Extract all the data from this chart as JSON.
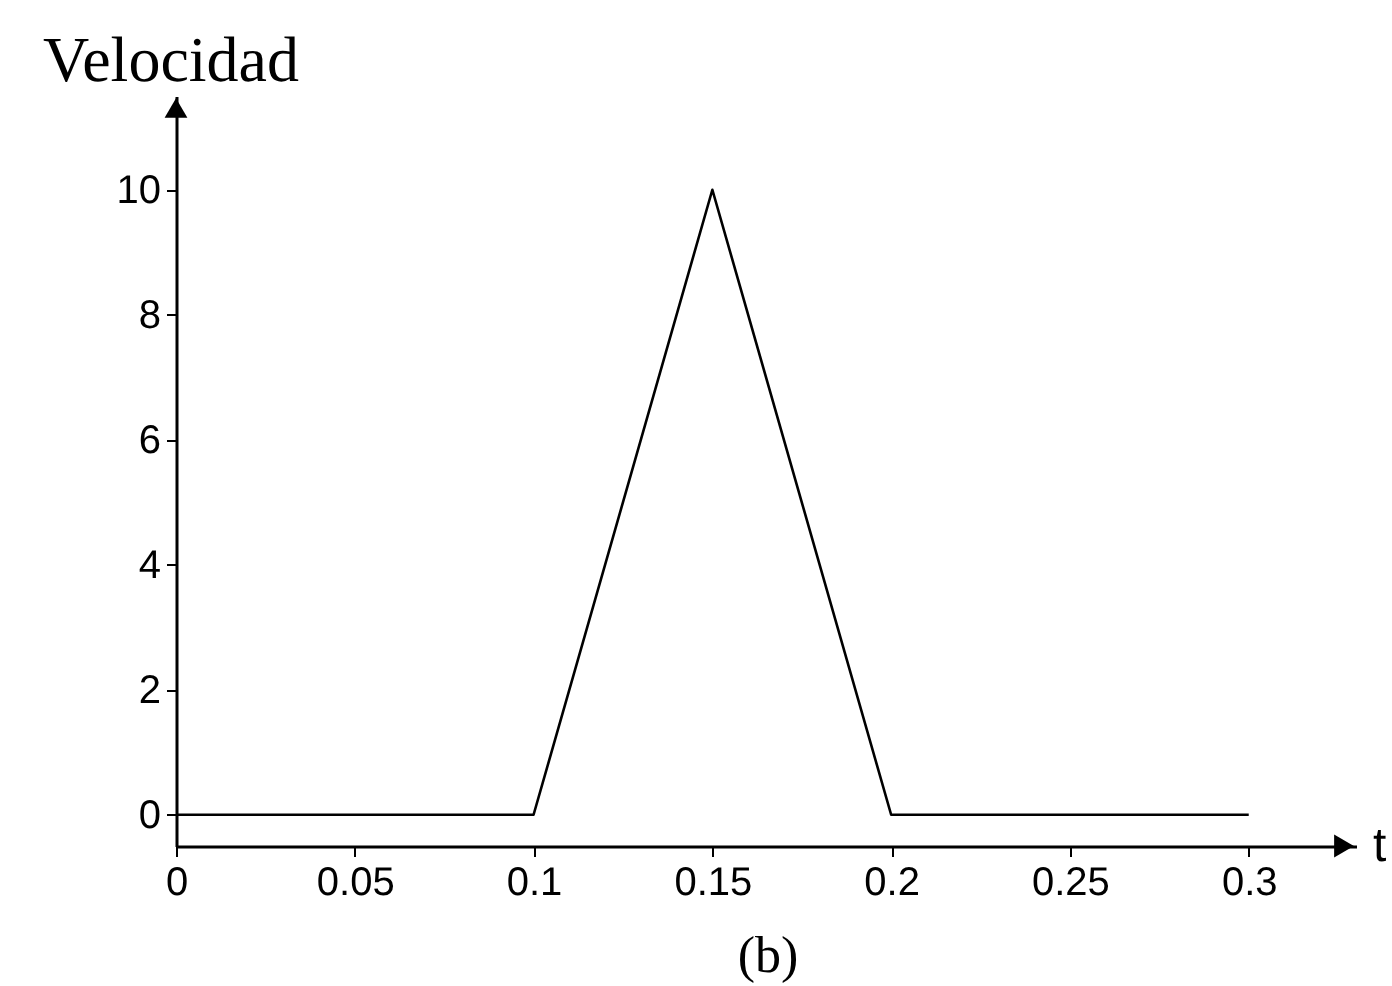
{
  "chart_data": {
    "type": "line",
    "xlabel": "t",
    "ylabel": "Velocidad",
    "annotations": [
      "(b)"
    ],
    "x": [
      0,
      0.1,
      0.15,
      0.2,
      0.3
    ],
    "series": [
      {
        "color": "#000000",
        "values": [
          0,
          0,
          10,
          0,
          0
        ]
      }
    ],
    "xlim": [
      0,
      0.33
    ],
    "ylim": [
      -0.5,
      11.5
    ],
    "xticks": [
      0,
      0.05,
      0.1,
      0.15,
      0.2,
      0.25,
      0.3
    ],
    "yticks": [
      0,
      2,
      4,
      6,
      8,
      10
    ]
  }
}
